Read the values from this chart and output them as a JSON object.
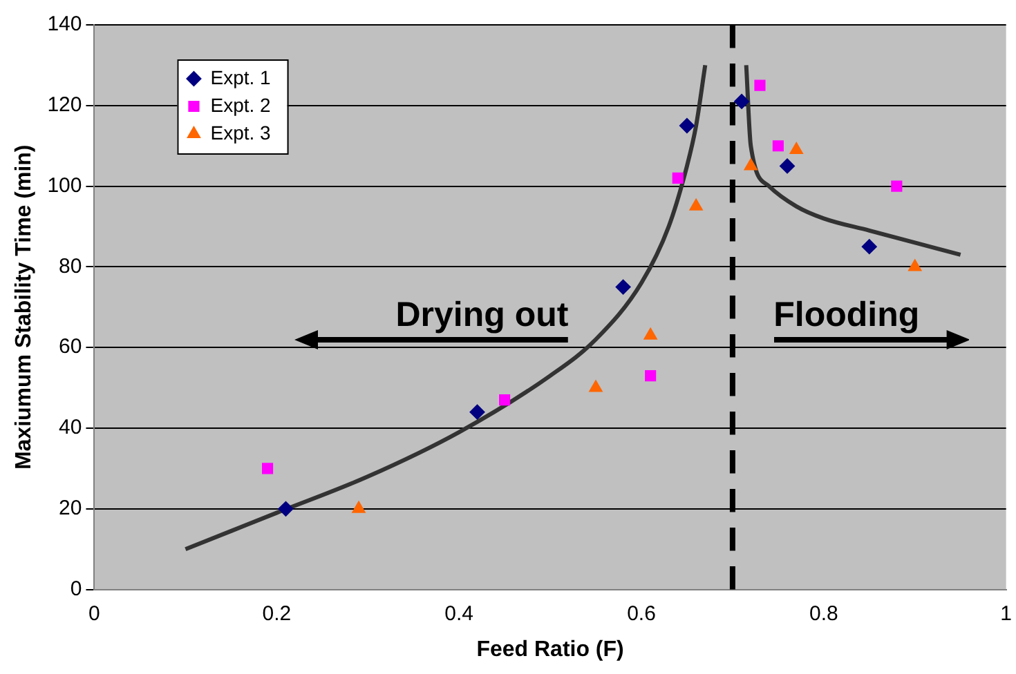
{
  "chart_data": {
    "type": "scatter",
    "xlabel": "Feed Ratio (F)",
    "ylabel": "Maxiumum Stability Time (min)",
    "xlim": [
      0,
      1
    ],
    "xticks": [
      0,
      0.2,
      0.4,
      0.6,
      0.8,
      1
    ],
    "ylim": [
      0,
      140
    ],
    "yticks": [
      0,
      20,
      40,
      60,
      80,
      100,
      120,
      140
    ],
    "grid": "y",
    "legend": "top left",
    "series": [
      {
        "name": "Expt. 1",
        "color": "#000080",
        "marker": "diamond",
        "x": [
          0.21,
          0.42,
          0.58,
          0.65,
          0.71,
          0.76,
          0.85
        ],
        "values": [
          20,
          44,
          75,
          115,
          121,
          105,
          85
        ]
      },
      {
        "name": "Expt. 2",
        "color": "#ff00ff",
        "marker": "square",
        "x": [
          0.19,
          0.45,
          0.61,
          0.64,
          0.73,
          0.75,
          0.88
        ],
        "values": [
          30,
          47,
          53,
          102,
          125,
          110,
          100
        ]
      },
      {
        "name": "Expt. 3",
        "color": "#ff6600",
        "marker": "triangle",
        "x": [
          0.29,
          0.55,
          0.61,
          0.66,
          0.72,
          0.77,
          0.9
        ],
        "values": [
          20,
          50,
          63,
          95,
          105,
          109,
          80
        ]
      },
      {
        "type": "line",
        "color": "#333333",
        "marker": "none",
        "x": [
          0.1,
          0.2,
          0.3,
          0.4,
          0.5,
          0.55,
          0.6,
          0.63,
          0.65,
          0.66,
          0.67
        ],
        "values": [
          10,
          19,
          28,
          39,
          53,
          62,
          76,
          90,
          105,
          115,
          130
        ]
      },
      {
        "type": "line",
        "color": "#333333",
        "marker": "none",
        "x": [
          0.715,
          0.72,
          0.74,
          0.77,
          0.8,
          0.85,
          0.9,
          0.95
        ],
        "values": [
          130,
          110,
          100,
          95,
          92,
          89,
          86,
          83
        ]
      }
    ],
    "ref_lines": [
      {
        "axis": "x",
        "value": 0.7,
        "color": "#000000",
        "line_style": "dashed"
      }
    ],
    "annotations": [
      "Drying out",
      "Flooding"
    ]
  }
}
